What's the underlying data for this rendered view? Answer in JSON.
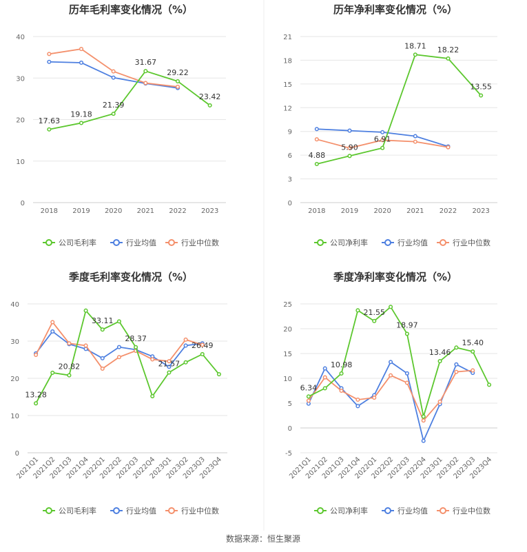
{
  "source": "数据来源：恒生聚源",
  "legend_labels": [
    "行业均值",
    "行业中位数"
  ],
  "colors": {
    "company": "#5cc72e",
    "industry_avg": "#4d7fe0",
    "industry_median": "#f4906c",
    "grid": "#e6e6e6",
    "divider": "#eeeeee"
  },
  "chart_data": [
    {
      "type": "line",
      "title": "历年毛利率变化情况（%）",
      "categories": [
        "2018",
        "2019",
        "2020",
        "2021",
        "2022",
        "2023"
      ],
      "ylim": [
        0,
        40
      ],
      "yticks": [
        0,
        10,
        20,
        30,
        40
      ],
      "xlabel_rotate": false,
      "series": [
        {
          "name": "公司毛利率",
          "key": "company",
          "values": [
            17.63,
            19.18,
            21.39,
            31.67,
            29.22,
            23.42
          ],
          "labels": [
            "17.63",
            "19.18",
            "21.39",
            "31.67",
            "29.22",
            "23.42"
          ]
        },
        {
          "name": "行业均值",
          "key": "industry_avg",
          "values": [
            33.9,
            33.7,
            30.1,
            28.7,
            27.6,
            null
          ]
        },
        {
          "name": "行业中位数",
          "key": "industry_median",
          "values": [
            35.8,
            37.0,
            31.6,
            28.8,
            27.9,
            null
          ]
        }
      ]
    },
    {
      "type": "line",
      "title": "历年净利率变化情况（%）",
      "categories": [
        "2018",
        "2019",
        "2020",
        "2021",
        "2022",
        "2023"
      ],
      "ylim": [
        0,
        21
      ],
      "yticks": [
        0,
        3,
        6,
        9,
        12,
        15,
        18,
        21
      ],
      "xlabel_rotate": false,
      "series": [
        {
          "name": "公司净利率",
          "key": "company",
          "values": [
            4.88,
            5.9,
            6.91,
            18.71,
            18.22,
            13.55
          ],
          "labels": [
            "4.88",
            "5.90",
            "6.91",
            "18.71",
            "18.22",
            "13.55"
          ]
        },
        {
          "name": "行业均值",
          "key": "industry_avg",
          "values": [
            9.3,
            9.1,
            8.9,
            8.4,
            7.1,
            null
          ]
        },
        {
          "name": "行业中位数",
          "key": "industry_median",
          "values": [
            8.0,
            6.9,
            7.9,
            7.7,
            7.0,
            null
          ]
        }
      ]
    },
    {
      "type": "line",
      "title": "季度毛利率变化情况（%）",
      "categories": [
        "2021Q1",
        "2021Q2",
        "2021Q3",
        "2021Q4",
        "2022Q1",
        "2022Q2",
        "2022Q3",
        "2022Q4",
        "2023Q1",
        "2023Q2",
        "2023Q3",
        "2023Q4"
      ],
      "ylim": [
        0,
        40
      ],
      "yticks": [
        0,
        10,
        20,
        30,
        40
      ],
      "xlabel_rotate": true,
      "series": [
        {
          "name": "公司毛利率",
          "key": "company",
          "values": [
            13.28,
            21.5,
            20.82,
            38.2,
            33.11,
            35.3,
            28.37,
            15.2,
            21.57,
            24.3,
            26.49,
            21.1
          ],
          "labels": [
            "13.28",
            "",
            "20.82",
            "",
            "33.11",
            "",
            "28.37",
            "",
            "21.57",
            "",
            "26.49",
            ""
          ]
        },
        {
          "name": "行业均值",
          "key": "industry_avg",
          "values": [
            26.7,
            32.6,
            29.2,
            27.9,
            25.4,
            28.4,
            27.7,
            25.9,
            23.1,
            28.8,
            29.4,
            null
          ]
        },
        {
          "name": "行业中位数",
          "key": "industry_median",
          "values": [
            26.3,
            35.1,
            29.4,
            28.8,
            22.6,
            25.7,
            27.4,
            25.1,
            24.6,
            30.4,
            29.0,
            null
          ]
        }
      ]
    },
    {
      "type": "line",
      "title": "季度净利率变化情况（%）",
      "categories": [
        "2021Q1",
        "2021Q2",
        "2021Q3",
        "2021Q4",
        "2022Q1",
        "2022Q2",
        "2022Q3",
        "2022Q4",
        "2023Q1",
        "2023Q2",
        "2023Q3",
        "2023Q4"
      ],
      "ylim": [
        -5,
        25
      ],
      "yticks": [
        -5,
        0,
        5,
        10,
        15,
        20,
        25
      ],
      "xlabel_rotate": true,
      "series": [
        {
          "name": "公司净利率",
          "key": "company",
          "values": [
            6.34,
            8.0,
            10.98,
            23.7,
            21.55,
            24.4,
            18.97,
            2.3,
            13.46,
            16.2,
            15.4,
            8.7
          ],
          "labels": [
            "6.34",
            "",
            "10.98",
            "",
            "21.55",
            "",
            "18.97",
            "",
            "13.46",
            "",
            "15.40",
            ""
          ]
        },
        {
          "name": "行业均值",
          "key": "industry_avg",
          "values": [
            4.9,
            12.0,
            8.0,
            4.4,
            6.6,
            13.3,
            11.0,
            -2.6,
            4.8,
            12.8,
            11.1,
            null
          ]
        },
        {
          "name": "行业中位数",
          "key": "industry_median",
          "values": [
            5.5,
            10.2,
            7.5,
            5.7,
            6.1,
            10.6,
            9.1,
            1.5,
            5.3,
            11.3,
            11.6,
            null
          ]
        }
      ]
    }
  ]
}
